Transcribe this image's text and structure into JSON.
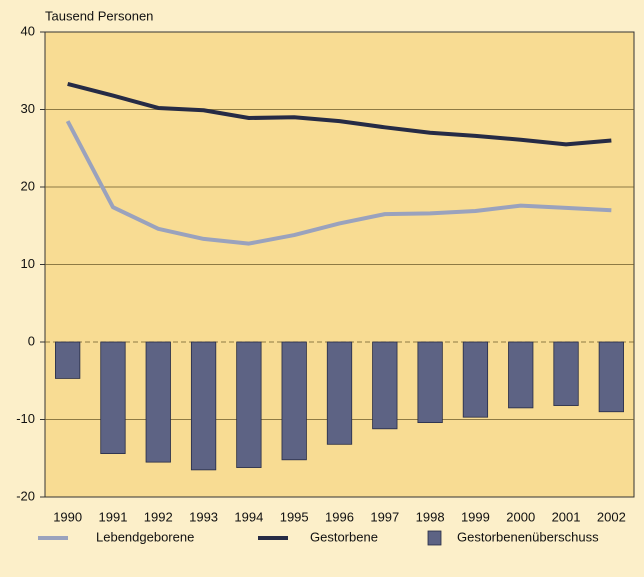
{
  "chart_data": {
    "type": "combo",
    "y_label": "Tausend Personen",
    "categories": [
      "1990",
      "1991",
      "1992",
      "1993",
      "1994",
      "1995",
      "1996",
      "1997",
      "1998",
      "1999",
      "2000",
      "2001",
      "2002"
    ],
    "series": [
      {
        "name": "Lebendgeborene",
        "type": "line",
        "color": "#9aa2bd",
        "values": [
          28.5,
          17.4,
          14.6,
          13.3,
          12.7,
          13.8,
          15.3,
          16.5,
          16.6,
          16.9,
          17.6,
          17.3,
          17.0
        ]
      },
      {
        "name": "Gestorbene",
        "type": "line",
        "color": "#262b45",
        "values": [
          33.3,
          31.8,
          30.2,
          29.9,
          28.9,
          29.0,
          28.5,
          27.7,
          27.0,
          26.6,
          26.1,
          25.5,
          26.0
        ]
      },
      {
        "name": "Gestorbenenüberschuss",
        "type": "bar",
        "color": "#5d6384",
        "values": [
          -4.7,
          -14.4,
          -15.5,
          -16.5,
          -16.2,
          -15.2,
          -13.2,
          -11.2,
          -10.4,
          -9.7,
          -8.5,
          -8.2,
          -9.0
        ]
      }
    ],
    "ylim": [
      -20,
      40
    ],
    "yticks": [
      -20,
      -10,
      0,
      10,
      20,
      30,
      40
    ],
    "grid": true
  }
}
